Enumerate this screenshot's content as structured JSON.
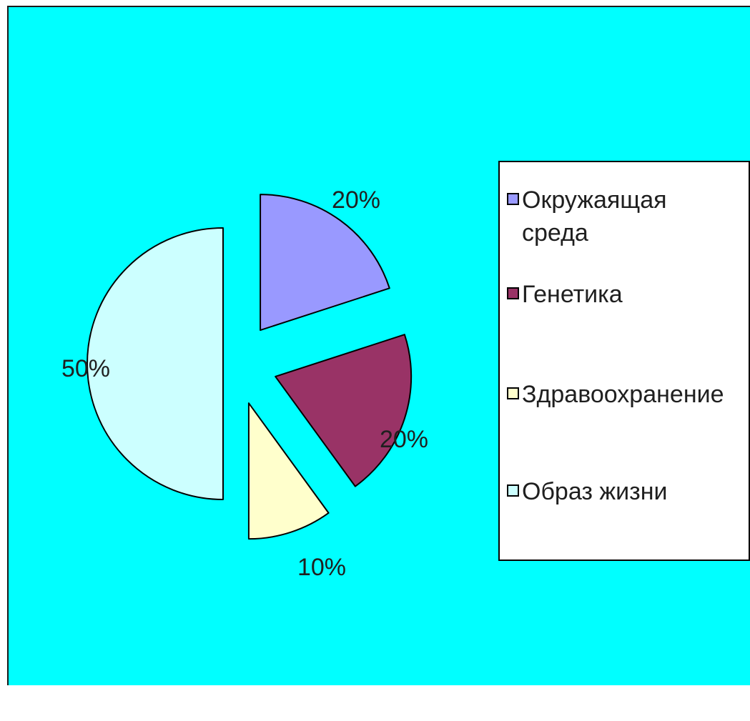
{
  "chart_data": {
    "type": "pie",
    "title": "",
    "categories": [
      "Окружаящая среда",
      "Генетика",
      "Здравоохранение",
      "Образ жизни"
    ],
    "values": [
      20,
      20,
      10,
      50
    ],
    "data_labels": [
      "20%",
      "20%",
      "10%",
      "50%"
    ],
    "colors": [
      "#9999ff",
      "#993366",
      "#ffffcc",
      "#ccffff"
    ],
    "exploded": true,
    "legend_position": "right",
    "background_color": "#00ffff"
  },
  "legend": {
    "items": [
      {
        "label": "Окружаящая среда",
        "color": "#9999ff"
      },
      {
        "label": "Генетика",
        "color": "#993366"
      },
      {
        "label": "Здравоохранение",
        "color": "#ffffcc"
      },
      {
        "label": "Образ жизни",
        "color": "#ccffff"
      }
    ]
  }
}
